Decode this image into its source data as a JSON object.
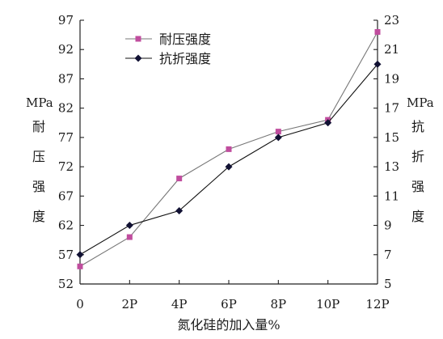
{
  "chart_data": {
    "type": "line",
    "title": "",
    "xlabel": "氮化硅的加入量%",
    "categories": [
      "0",
      "2P",
      "4P",
      "6P",
      "8P",
      "10P",
      "12P"
    ],
    "y_left": {
      "unit": "MPa",
      "label_chars": [
        "耐",
        "压",
        "强",
        "度"
      ],
      "ylim": [
        52,
        97
      ],
      "ticks": [
        52,
        57,
        62,
        67,
        72,
        77,
        82,
        87,
        92,
        97
      ]
    },
    "y_right": {
      "unit": "MPa",
      "label_chars": [
        "抗",
        "折",
        "强",
        "度"
      ],
      "ylim": [
        5,
        23
      ],
      "ticks": [
        5,
        7,
        9,
        11,
        13,
        15,
        17,
        19,
        21,
        23
      ]
    },
    "grid": false,
    "legend_position": "top-left",
    "series": [
      {
        "name": "耐压强度",
        "axis": "left",
        "marker": "square",
        "color": "#c04d9e",
        "line_color": "#777777",
        "values": [
          55,
          60,
          70,
          75,
          78,
          80,
          95
        ]
      },
      {
        "name": "抗折强度",
        "axis": "right",
        "marker": "diamond",
        "color": "#111133",
        "line_color": "#111111",
        "values": [
          7,
          9,
          10,
          13,
          15,
          16,
          20
        ]
      }
    ]
  }
}
